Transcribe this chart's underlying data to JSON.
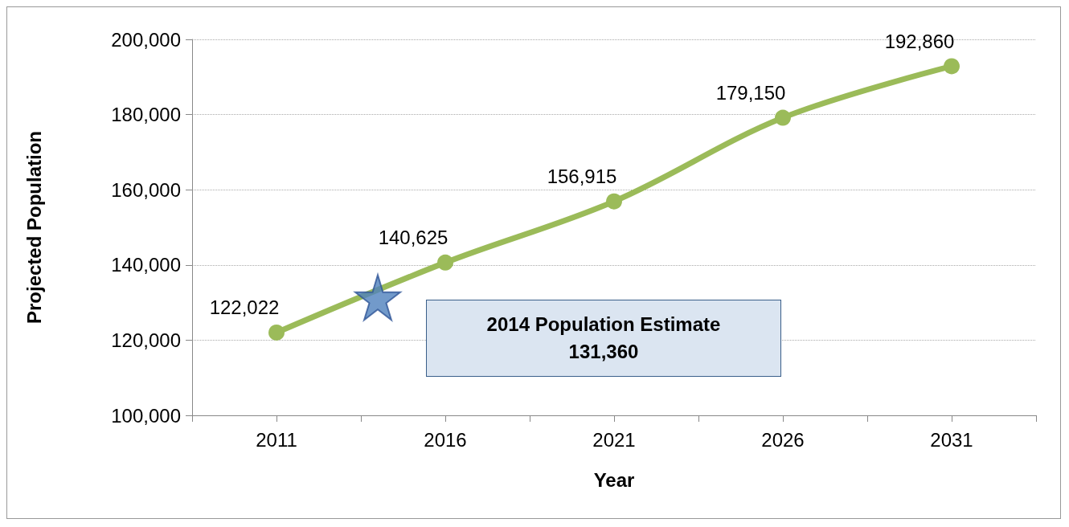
{
  "chart_data": {
    "type": "line",
    "xlabel": "Year",
    "ylabel": "Projected Population",
    "x": [
      2011,
      2016,
      2021,
      2026,
      2031
    ],
    "xlim": [
      2008.5,
      2033.5
    ],
    "xticks": [
      {
        "value": 2008.5,
        "label": null
      },
      {
        "value": 2011,
        "label": "2011"
      },
      {
        "value": 2013.5,
        "label": null
      },
      {
        "value": 2016,
        "label": "2016"
      },
      {
        "value": 2018.5,
        "label": null
      },
      {
        "value": 2021,
        "label": "2021"
      },
      {
        "value": 2023.5,
        "label": null
      },
      {
        "value": 2026,
        "label": "2026"
      },
      {
        "value": 2028.5,
        "label": null
      },
      {
        "value": 2031,
        "label": "2031"
      },
      {
        "value": 2033.5,
        "label": null
      }
    ],
    "ylim": [
      100000,
      200000
    ],
    "yticks": [
      {
        "value": 100000,
        "label": "100,000"
      },
      {
        "value": 120000,
        "label": "120,000"
      },
      {
        "value": 140000,
        "label": "140,000"
      },
      {
        "value": 160000,
        "label": "160,000"
      },
      {
        "value": 180000,
        "label": "180,000"
      },
      {
        "value": 200000,
        "label": "200,000"
      }
    ],
    "series": [
      {
        "color": "#9bbb59",
        "values": [
          122022,
          140625,
          156915,
          179150,
          192860
        ],
        "value_labels": [
          "122,022",
          "140,625",
          "156,915",
          "179,150",
          "192,860"
        ],
        "marker": "circle"
      },
      {
        "type": "scatter",
        "color": "#4f81bd",
        "x": [
          2014
        ],
        "values": [
          131360
        ],
        "marker": "star"
      }
    ],
    "annotations": [
      "2014 Population Estimate\n131,360"
    ],
    "grid": "y",
    "line_style": "solid"
  }
}
